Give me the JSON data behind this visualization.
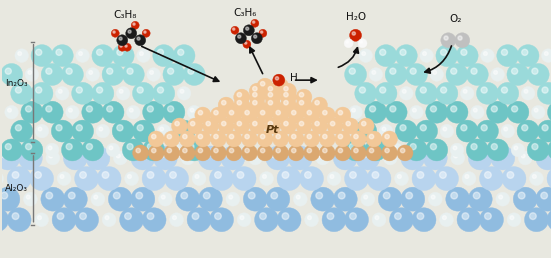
{
  "fig_width": 5.51,
  "fig_height": 2.58,
  "dpi": 100,
  "bg_color": "#e8e8e0",
  "labels": {
    "C3H8": "C₃H₈",
    "C3H6": "C₃H₆",
    "H2O": "H₂O",
    "O2": "O₂",
    "H": "H",
    "Pt": "Pt",
    "In2O3": "In₂O₃",
    "Al2O3": "Al₂O₃"
  },
  "colors": {
    "teal_large": "#6ec5c5",
    "teal_light": "#9adada",
    "teal_dark": "#4aacac",
    "white_sphere": "#e8f0f0",
    "blue_large": "#90bce0",
    "blue_light": "#b8d4ee",
    "blue_dark": "#5a90c0",
    "pt_light": "#f2c898",
    "pt_mid": "#dba870",
    "pt_dark": "#c08040",
    "red_atom": "#cc2200",
    "dark_atom": "#1a1a1a",
    "white_atom": "#f8f8f8",
    "gray_atom": "#c0c0c0",
    "gray_dark": "#909090",
    "arrow_color": "#111111",
    "label_color": "#111111",
    "bracket_color": "#777777"
  }
}
